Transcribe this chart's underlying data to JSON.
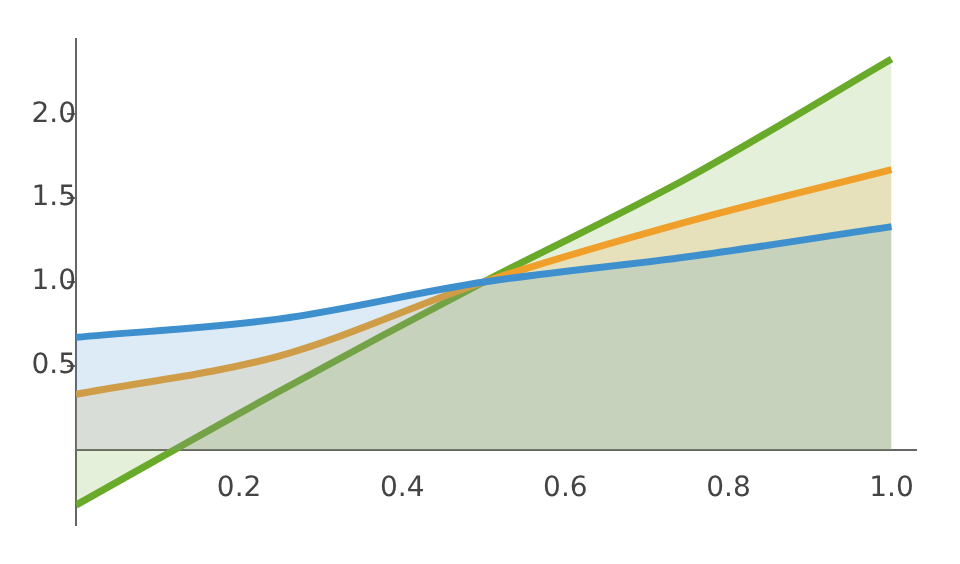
{
  "chart_data": {
    "type": "area",
    "x": [
      0,
      0.25,
      0.5,
      0.75,
      1
    ],
    "series": [
      {
        "color": "#3d8fce",
        "values": [
          0.67,
          0.78,
          1.0,
          1.15,
          1.33
        ]
      },
      {
        "color": "#f0a02a",
        "values": [
          0.33,
          0.56,
          1.0,
          1.36,
          1.67
        ]
      },
      {
        "color": "#6aaa2a",
        "values": [
          -0.33,
          0.35,
          1.0,
          1.62,
          2.33
        ]
      }
    ],
    "xlim": [
      0,
      1.03
    ],
    "xticks": [
      0.2,
      0.4,
      0.6,
      0.8,
      {
        "value": 1,
        "label": "1.0"
      }
    ],
    "ylim": [
      -0.45,
      2.45
    ],
    "yticks": [
      0.5,
      {
        "value": 1,
        "label": "1.0"
      },
      1.5,
      {
        "value": 2,
        "label": "2.0"
      }
    ],
    "grid": false,
    "legend": false
  }
}
